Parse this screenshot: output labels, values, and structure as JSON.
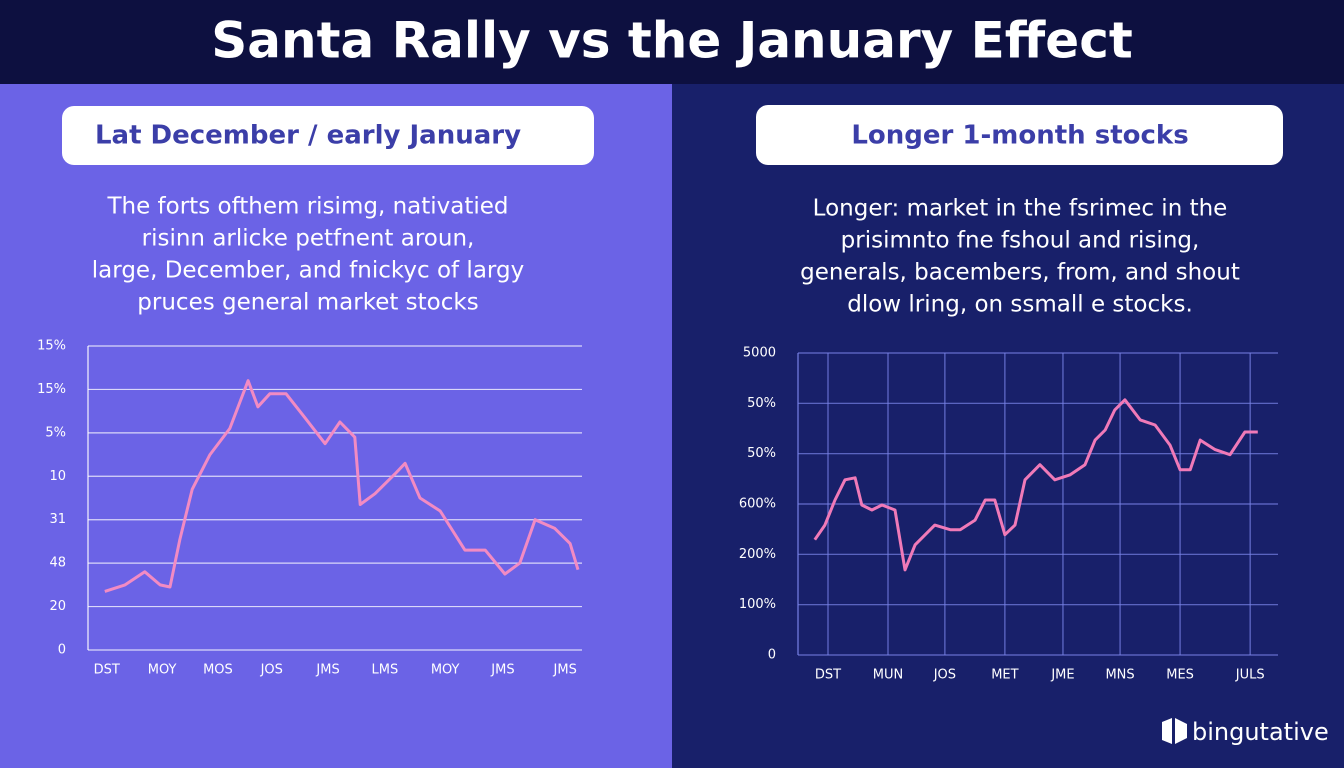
{
  "title": "Santa Rally vs the January Effect",
  "brand": "bingutative",
  "chart_data": [
    {
      "type": "line",
      "title": "Lat December / early January",
      "description": [
        "The forts ofthem risimg, nativatied",
        "risinn arlicke petfnent aroun,",
        "large, December, and fnickyc of largy",
        "pruces general market stocks"
      ],
      "color": "#f28bc3",
      "grid": true,
      "vertical_grid": false,
      "xlim": [
        0,
        100
      ],
      "ylim": [
        0,
        7
      ],
      "xticks": [
        {
          "value": 3.8,
          "label": "DST"
        },
        {
          "value": 15,
          "label": "MOY"
        },
        {
          "value": 26.3,
          "label": "MOS"
        },
        {
          "value": 37.2,
          "label": "JOS"
        },
        {
          "value": 48.6,
          "label": "JMS"
        },
        {
          "value": 60.1,
          "label": "LMS"
        },
        {
          "value": 72.3,
          "label": "MOY"
        },
        {
          "value": 84,
          "label": "JMS"
        },
        {
          "value": 96.6,
          "label": "JMS"
        }
      ],
      "yticks": [
        0,
        {
          "value": 1,
          "label": "20"
        },
        {
          "value": 2,
          "label": "48"
        },
        {
          "value": 3,
          "label": "31"
        },
        {
          "value": 4,
          "label": "10"
        },
        {
          "value": 5,
          "label": "5%"
        },
        {
          "value": 6,
          "label": "15%"
        },
        {
          "value": 7,
          "label": "15%"
        }
      ],
      "x": [
        3.4,
        7.5,
        11.5,
        14.6,
        16.6,
        18.6,
        21.1,
        24.7,
        28.7,
        32.4,
        34.4,
        36.8,
        40.1,
        43.9,
        48,
        51,
        54,
        55.1,
        58.1,
        62.1,
        64.2,
        67.2,
        71.3,
        76.3,
        80.4,
        84.4,
        87.4,
        90.5,
        94.5,
        97.6,
        99.2
      ],
      "values": [
        1.35,
        1.5,
        1.8,
        1.5,
        1.45,
        2.55,
        3.7,
        4.5,
        5.1,
        6.2,
        5.6,
        5.9,
        5.9,
        5.35,
        4.75,
        5.25,
        4.9,
        3.35,
        3.6,
        4.05,
        4.3,
        3.5,
        3.2,
        2.3,
        2.3,
        1.75,
        2.0,
        3.0,
        2.8,
        2.45,
        1.85
      ]
    },
    {
      "type": "line",
      "title": "Longer 1-month stocks",
      "description": [
        "Longer: market in the fsrimec in the",
        "prisimnto fne fshoul and rising,",
        "generals, bacembers, from, and shout",
        "dlow lring, on ssmall e stocks."
      ],
      "color": "#f07ab8",
      "grid": true,
      "vertical_grid": true,
      "xlim": [
        0,
        100
      ],
      "ylim": [
        0,
        6
      ],
      "xticks": [
        {
          "value": 6.25,
          "label": "DST"
        },
        {
          "value": 18.75,
          "label": "MUN"
        },
        {
          "value": 30.6,
          "label": "JOS"
        },
        {
          "value": 43.1,
          "label": "MET"
        },
        {
          "value": 55.2,
          "label": "JME"
        },
        {
          "value": 67.1,
          "label": "MNS"
        },
        {
          "value": 79.6,
          "label": "MES"
        },
        {
          "value": 94.2,
          "label": "JULS"
        }
      ],
      "yticks": [
        0,
        {
          "value": 1,
          "label": "100%"
        },
        {
          "value": 2,
          "label": "200%"
        },
        {
          "value": 3,
          "label": "600%"
        },
        {
          "value": 4,
          "label": "50%"
        },
        {
          "value": 5,
          "label": "50%"
        },
        {
          "value": 6,
          "label": "5000"
        }
      ],
      "x": [
        3.5,
        5.6,
        7.7,
        9.8,
        11.9,
        13.3,
        15.4,
        17.5,
        20.2,
        22.3,
        24.4,
        26.5,
        28.5,
        31.7,
        33.8,
        36.9,
        39,
        41,
        43.1,
        45.2,
        47.3,
        50.4,
        53.5,
        56.7,
        59.8,
        61.9,
        64,
        66,
        68.1,
        71.3,
        74.4,
        77.5,
        79.6,
        81.7,
        83.8,
        86.9,
        90,
        93.1,
        95.8
      ],
      "values": [
        2.29,
        2.58,
        3.08,
        3.48,
        3.52,
        2.98,
        2.88,
        2.98,
        2.88,
        1.69,
        2.19,
        2.39,
        2.58,
        2.49,
        2.49,
        2.68,
        3.08,
        3.08,
        2.39,
        2.58,
        3.48,
        3.78,
        3.48,
        3.58,
        3.78,
        4.27,
        4.47,
        4.87,
        5.07,
        4.67,
        4.57,
        4.17,
        3.68,
        3.68,
        4.27,
        4.08,
        3.98,
        4.43,
        4.43
      ]
    }
  ]
}
